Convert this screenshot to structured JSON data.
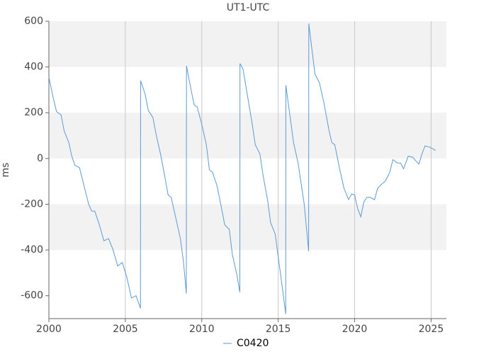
{
  "chart_data": {
    "type": "line",
    "title": "UT1-UTC",
    "ylabel": "ms",
    "xlim": [
      2000,
      2026
    ],
    "xticks": [
      2000,
      2005,
      2010,
      2015,
      2020,
      2025
    ],
    "ylim": [
      -700,
      600
    ],
    "yticks": [
      -600,
      -400,
      -200,
      0,
      200,
      400,
      600
    ],
    "grid": true,
    "series": [
      {
        "name": "C0420",
        "color": "#5b9bd5",
        "x": [
          2000.0,
          2000.3,
          2000.5,
          2000.8,
          2001.0,
          2001.3,
          2001.5,
          2001.7,
          2002.0,
          2002.3,
          2002.6,
          2002.8,
          2003.0,
          2003.3,
          2003.6,
          2003.9,
          2004.2,
          2004.5,
          2004.8,
          2005.1,
          2005.4,
          2005.7,
          2005.99,
          2006.0,
          2006.3,
          2006.5,
          2006.8,
          2007.0,
          2007.3,
          2007.5,
          2007.8,
          2008.0,
          2008.3,
          2008.6,
          2008.8,
          2008.99,
          2009.0,
          2009.3,
          2009.5,
          2009.7,
          2010.0,
          2010.3,
          2010.5,
          2010.7,
          2011.0,
          2011.3,
          2011.5,
          2011.8,
          2012.0,
          2012.3,
          2012.49,
          2012.5,
          2012.7,
          2013.0,
          2013.3,
          2013.5,
          2013.8,
          2014.0,
          2014.3,
          2014.5,
          2014.8,
          2015.0,
          2015.3,
          2015.49,
          2015.5,
          2015.8,
          2016.0,
          2016.3,
          2016.5,
          2016.7,
          2016.99,
          2017.0,
          2017.2,
          2017.4,
          2017.7,
          2018.0,
          2018.3,
          2018.5,
          2018.7,
          2019.0,
          2019.3,
          2019.6,
          2019.8,
          2020.0,
          2020.2,
          2020.4,
          2020.6,
          2020.8,
          2021.0,
          2021.3,
          2021.5,
          2021.8,
          2022.0,
          2022.3,
          2022.5,
          2022.8,
          2023.0,
          2023.2,
          2023.5,
          2023.8,
          2024.0,
          2024.2,
          2024.4,
          2024.6,
          2024.9,
          2025.3
        ],
        "values": [
          355,
          260,
          205,
          190,
          120,
          70,
          10,
          -30,
          -40,
          -120,
          -200,
          -230,
          -230,
          -290,
          -360,
          -350,
          -400,
          -470,
          -455,
          -520,
          -610,
          -600,
          -655,
          340,
          280,
          210,
          180,
          110,
          20,
          -50,
          -160,
          -170,
          -260,
          -350,
          -450,
          -590,
          405,
          300,
          235,
          225,
          150,
          60,
          -50,
          -60,
          -120,
          -220,
          -290,
          -310,
          -420,
          -510,
          -585,
          415,
          390,
          270,
          150,
          60,
          20,
          -70,
          -180,
          -280,
          -330,
          -430,
          -580,
          -680,
          320,
          170,
          70,
          -20,
          -110,
          -200,
          -405,
          590,
          480,
          370,
          330,
          240,
          130,
          70,
          60,
          -40,
          -130,
          -180,
          -155,
          -160,
          -220,
          -255,
          -190,
          -170,
          -170,
          -180,
          -130,
          -110,
          -100,
          -60,
          -5,
          -20,
          -20,
          -45,
          10,
          5,
          -10,
          -25,
          20,
          55,
          50,
          35
        ]
      }
    ]
  }
}
